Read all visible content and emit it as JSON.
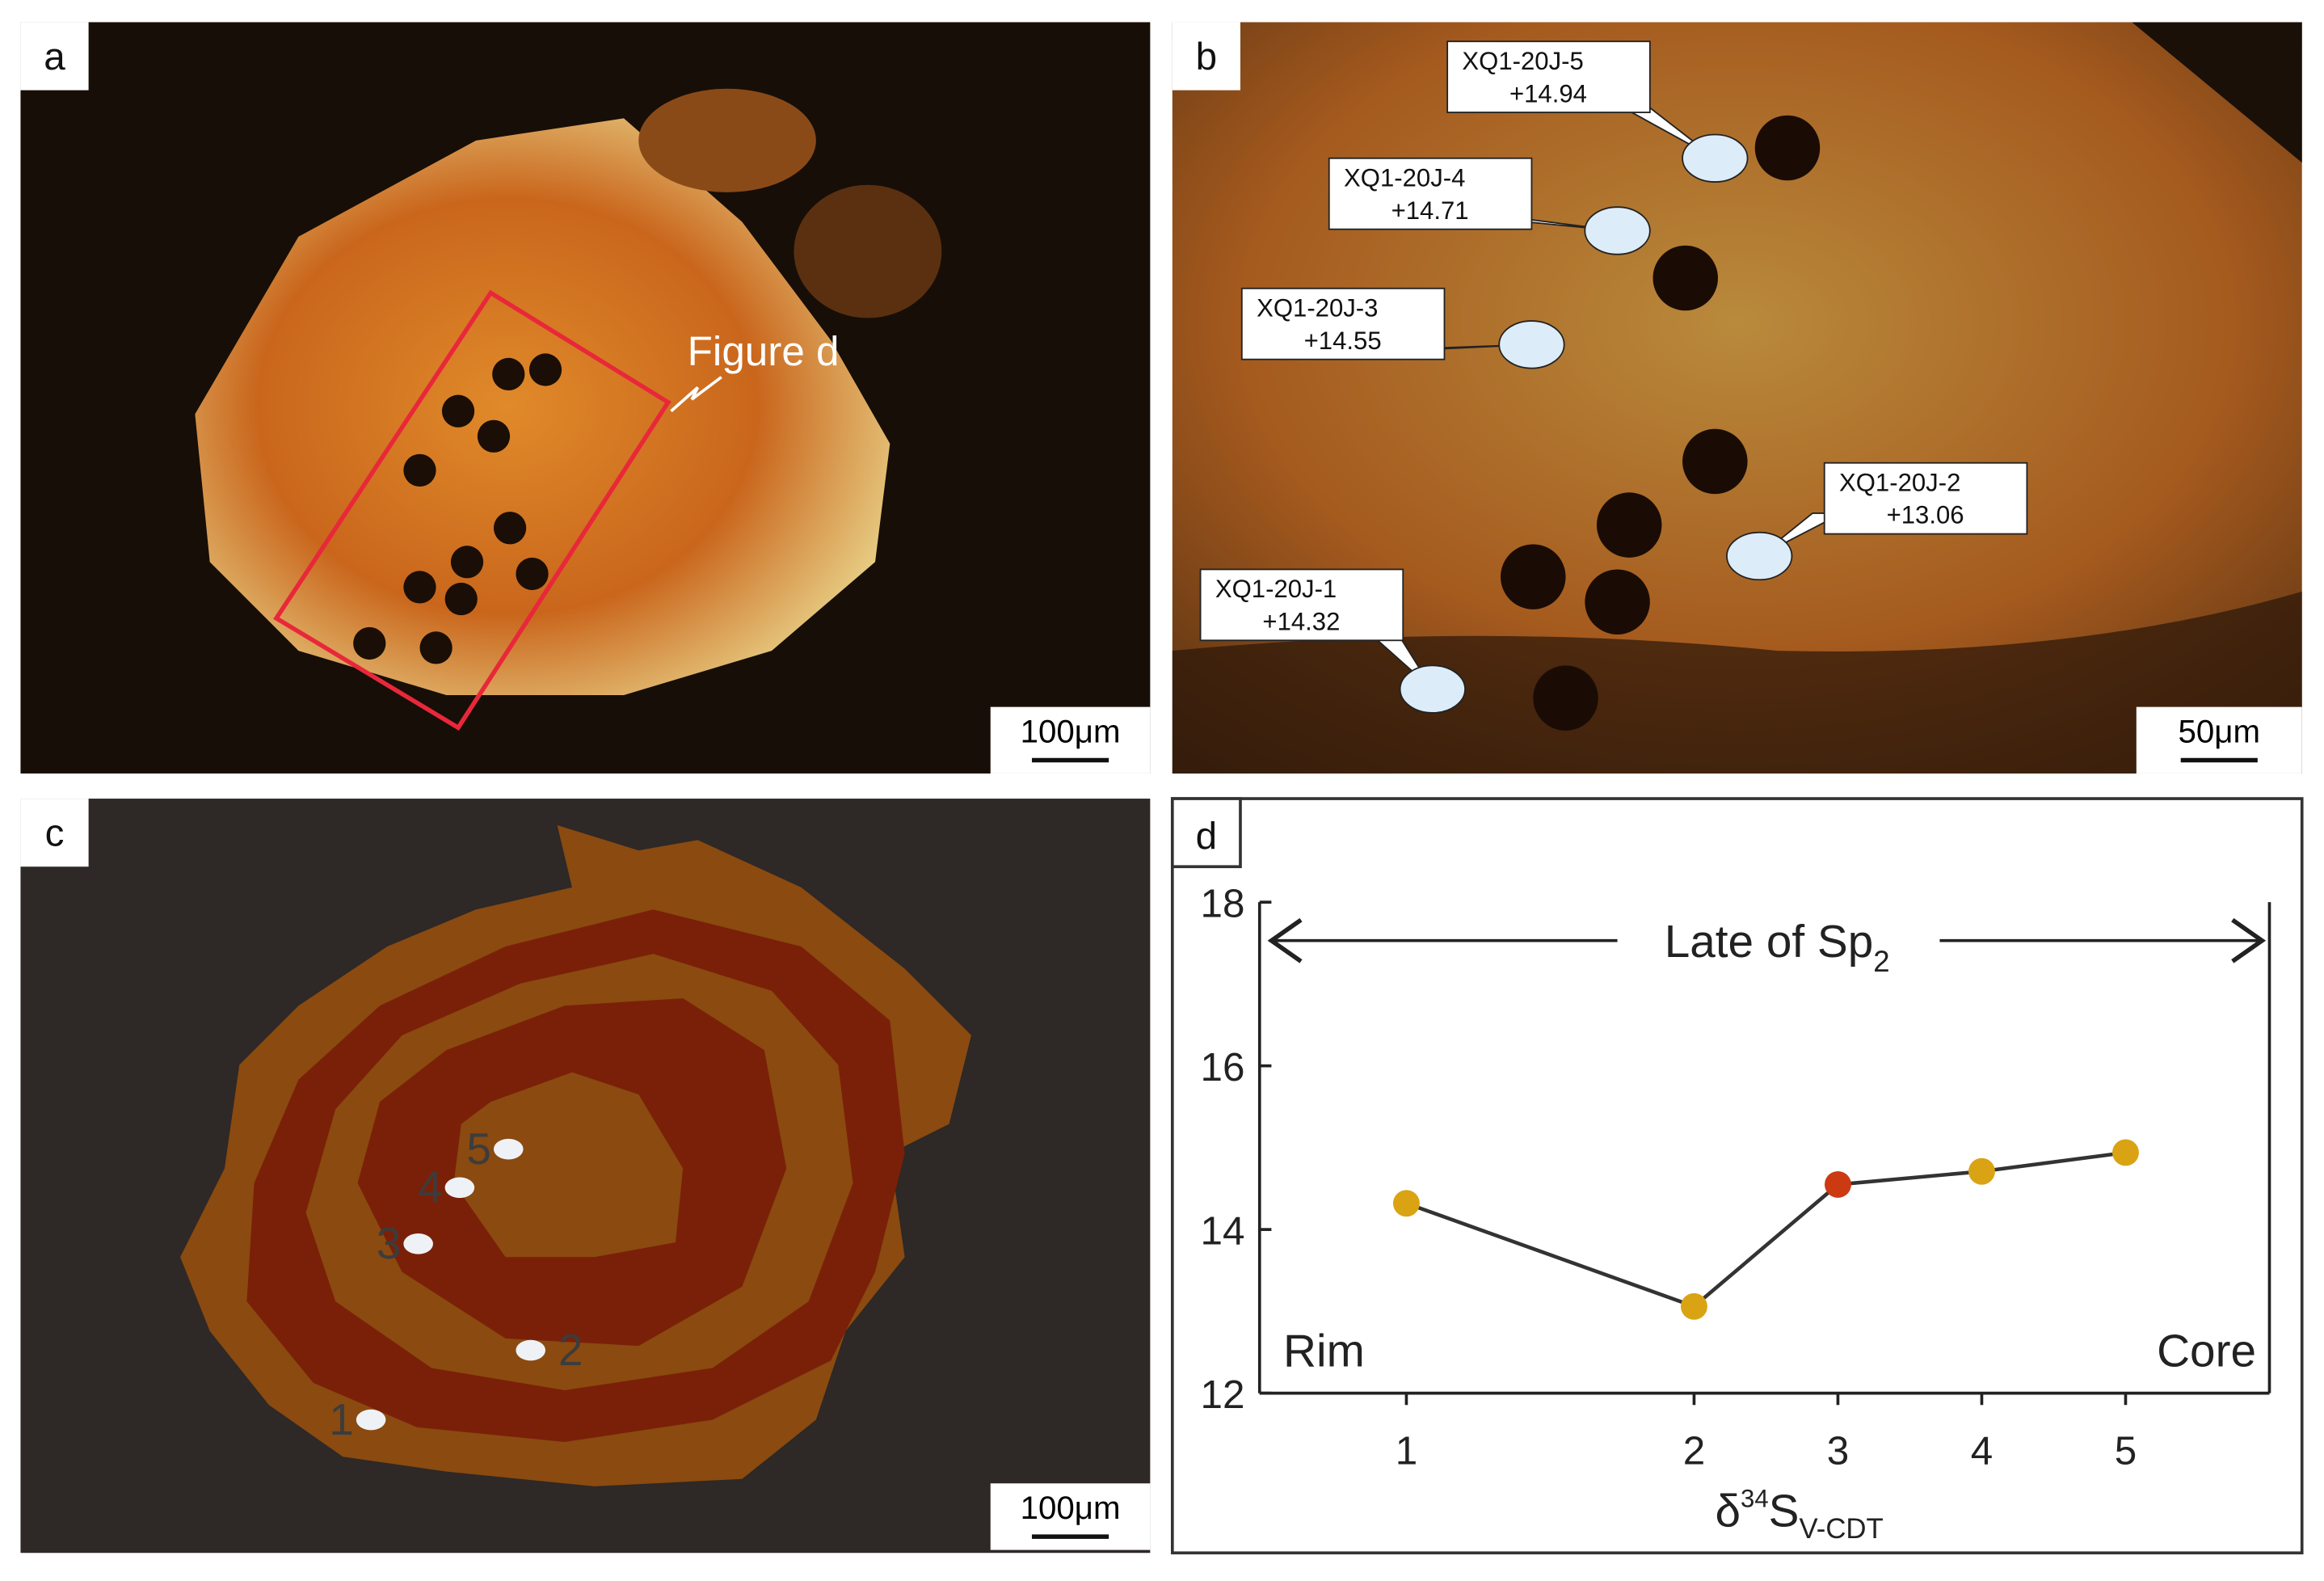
{
  "panels": {
    "a": {
      "letter": "a",
      "callout": "Figure d",
      "scale_bar": "100μm"
    },
    "b": {
      "letter": "b",
      "samples": [
        "XQ1-20J-1",
        "XQ1-20J-2",
        "XQ1-20J-3",
        "XQ1-20J-4",
        "XQ1-20J-5"
      ],
      "scale_bar": "50μm"
    },
    "c": {
      "letter": "c",
      "points": [
        "1",
        "2",
        "3",
        "4",
        "5"
      ],
      "scale_bar": "100μm"
    },
    "d": {
      "letter": "d"
    }
  },
  "chart_data": {
    "type": "line",
    "annotation": {
      "text": "Late of Sp",
      "subscript": "2"
    },
    "left_label": "Rim",
    "right_label": "Core",
    "x_label": {
      "delta": "δ",
      "superscript": "34",
      "symbol": "S",
      "subscript": "V-CDT"
    },
    "x": [
      1,
      3,
      4,
      5,
      6
    ],
    "values": [
      14.32,
      13.06,
      14.55,
      14.71,
      14.94
    ],
    "value_labels": [
      "+14.32",
      "+13.06",
      "+14.55",
      "+14.71",
      "+14.94"
    ],
    "line_color": "#333333",
    "point_colors": [
      "#d9a314",
      "#d9a314",
      "#cc3a12",
      "#d9a314",
      "#d9a314"
    ],
    "xlim": [
      0,
      7
    ],
    "xticks": [
      1,
      {
        "value": 3,
        "label": "2"
      },
      {
        "value": 4,
        "label": "3"
      },
      {
        "value": 5,
        "label": "4"
      },
      {
        "value": 6,
        "label": "5"
      }
    ],
    "ylim": [
      12,
      18
    ],
    "yticks": [
      12,
      14,
      16,
      18
    ]
  }
}
